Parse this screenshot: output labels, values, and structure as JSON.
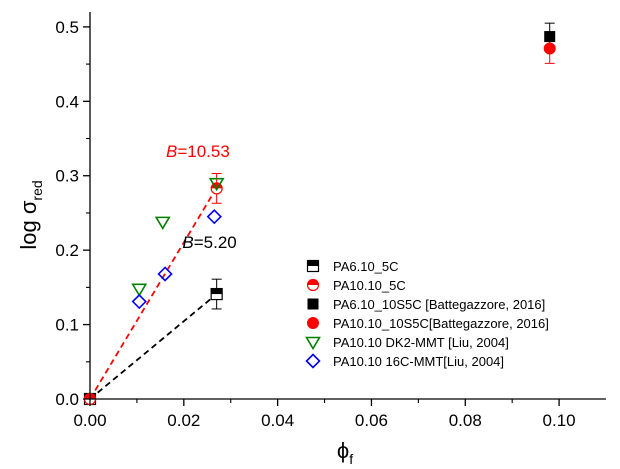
{
  "chart_data": {
    "type": "scatter",
    "xlabel": "ϕ",
    "xlabel_sub": "f",
    "ylabel": "log σ",
    "ylabel_sub": "red",
    "xlim": [
      0.0,
      0.11
    ],
    "ylim": [
      0.0,
      0.52
    ],
    "x_ticks": [
      0.0,
      0.02,
      0.04,
      0.06,
      0.08,
      0.1
    ],
    "x_tick_labels": [
      "0.00",
      "0.02",
      "0.04",
      "0.06",
      "0.08",
      "0.10"
    ],
    "y_ticks": [
      0.0,
      0.1,
      0.2,
      0.3,
      0.4,
      0.5
    ],
    "y_tick_labels": [
      "0.0",
      "0.1",
      "0.2",
      "0.3",
      "0.4",
      "0.5"
    ],
    "grid": false,
    "legend_position": "bottom-right",
    "series": [
      {
        "name": "PA6.10_5C",
        "marker": "half-square",
        "color": "#000000",
        "points": [
          {
            "x": 0.0,
            "y": 0.0
          },
          {
            "x": 0.027,
            "y": 0.141,
            "err": 0.02
          }
        ]
      },
      {
        "name": "PA10.10_5C",
        "marker": "half-circle",
        "color": "#ff0000",
        "points": [
          {
            "x": 0.0,
            "y": 0.0
          },
          {
            "x": 0.027,
            "y": 0.283,
            "err": 0.02
          }
        ]
      },
      {
        "name": "PA6.10_10S5C [Battegazzore, 2016]",
        "marker": "filled-square",
        "color": "#000000",
        "points": [
          {
            "x": 0.098,
            "y": 0.487,
            "err": 0.018
          }
        ]
      },
      {
        "name": "PA10.10_10S5C[Battegazzore, 2016]",
        "marker": "filled-circle",
        "color": "#ff0000",
        "points": [
          {
            "x": 0.098,
            "y": 0.471,
            "err": 0.02
          }
        ]
      },
      {
        "name": "PA10.10 DK2-MMT [Liu, 2004]",
        "marker": "open-triangle-down",
        "color": "#008000",
        "points": [
          {
            "x": 0.0105,
            "y": 0.148
          },
          {
            "x": 0.0155,
            "y": 0.238
          },
          {
            "x": 0.027,
            "y": 0.29
          }
        ]
      },
      {
        "name": "PA10.10 16C-MMT[Liu, 2004]",
        "marker": "open-diamond",
        "color": "#0000ff",
        "points": [
          {
            "x": 0.0105,
            "y": 0.131
          },
          {
            "x": 0.016,
            "y": 0.168
          },
          {
            "x": 0.0265,
            "y": 0.245
          }
        ]
      }
    ],
    "fit_lines": [
      {
        "color": "#000000",
        "x": [
          0.0,
          0.027
        ],
        "y": [
          0.0,
          0.141
        ]
      },
      {
        "color": "#ff0000",
        "x": [
          0.0,
          0.027
        ],
        "y": [
          0.0,
          0.284
        ]
      }
    ],
    "annotations": [
      {
        "prefix": "B",
        "text": "=5.20",
        "color": "#000000",
        "x": 0.0197,
        "y": 0.203
      },
      {
        "prefix": "B",
        "text": "=10.53",
        "color": "#ff0000",
        "x": 0.0162,
        "y": 0.325
      }
    ]
  }
}
